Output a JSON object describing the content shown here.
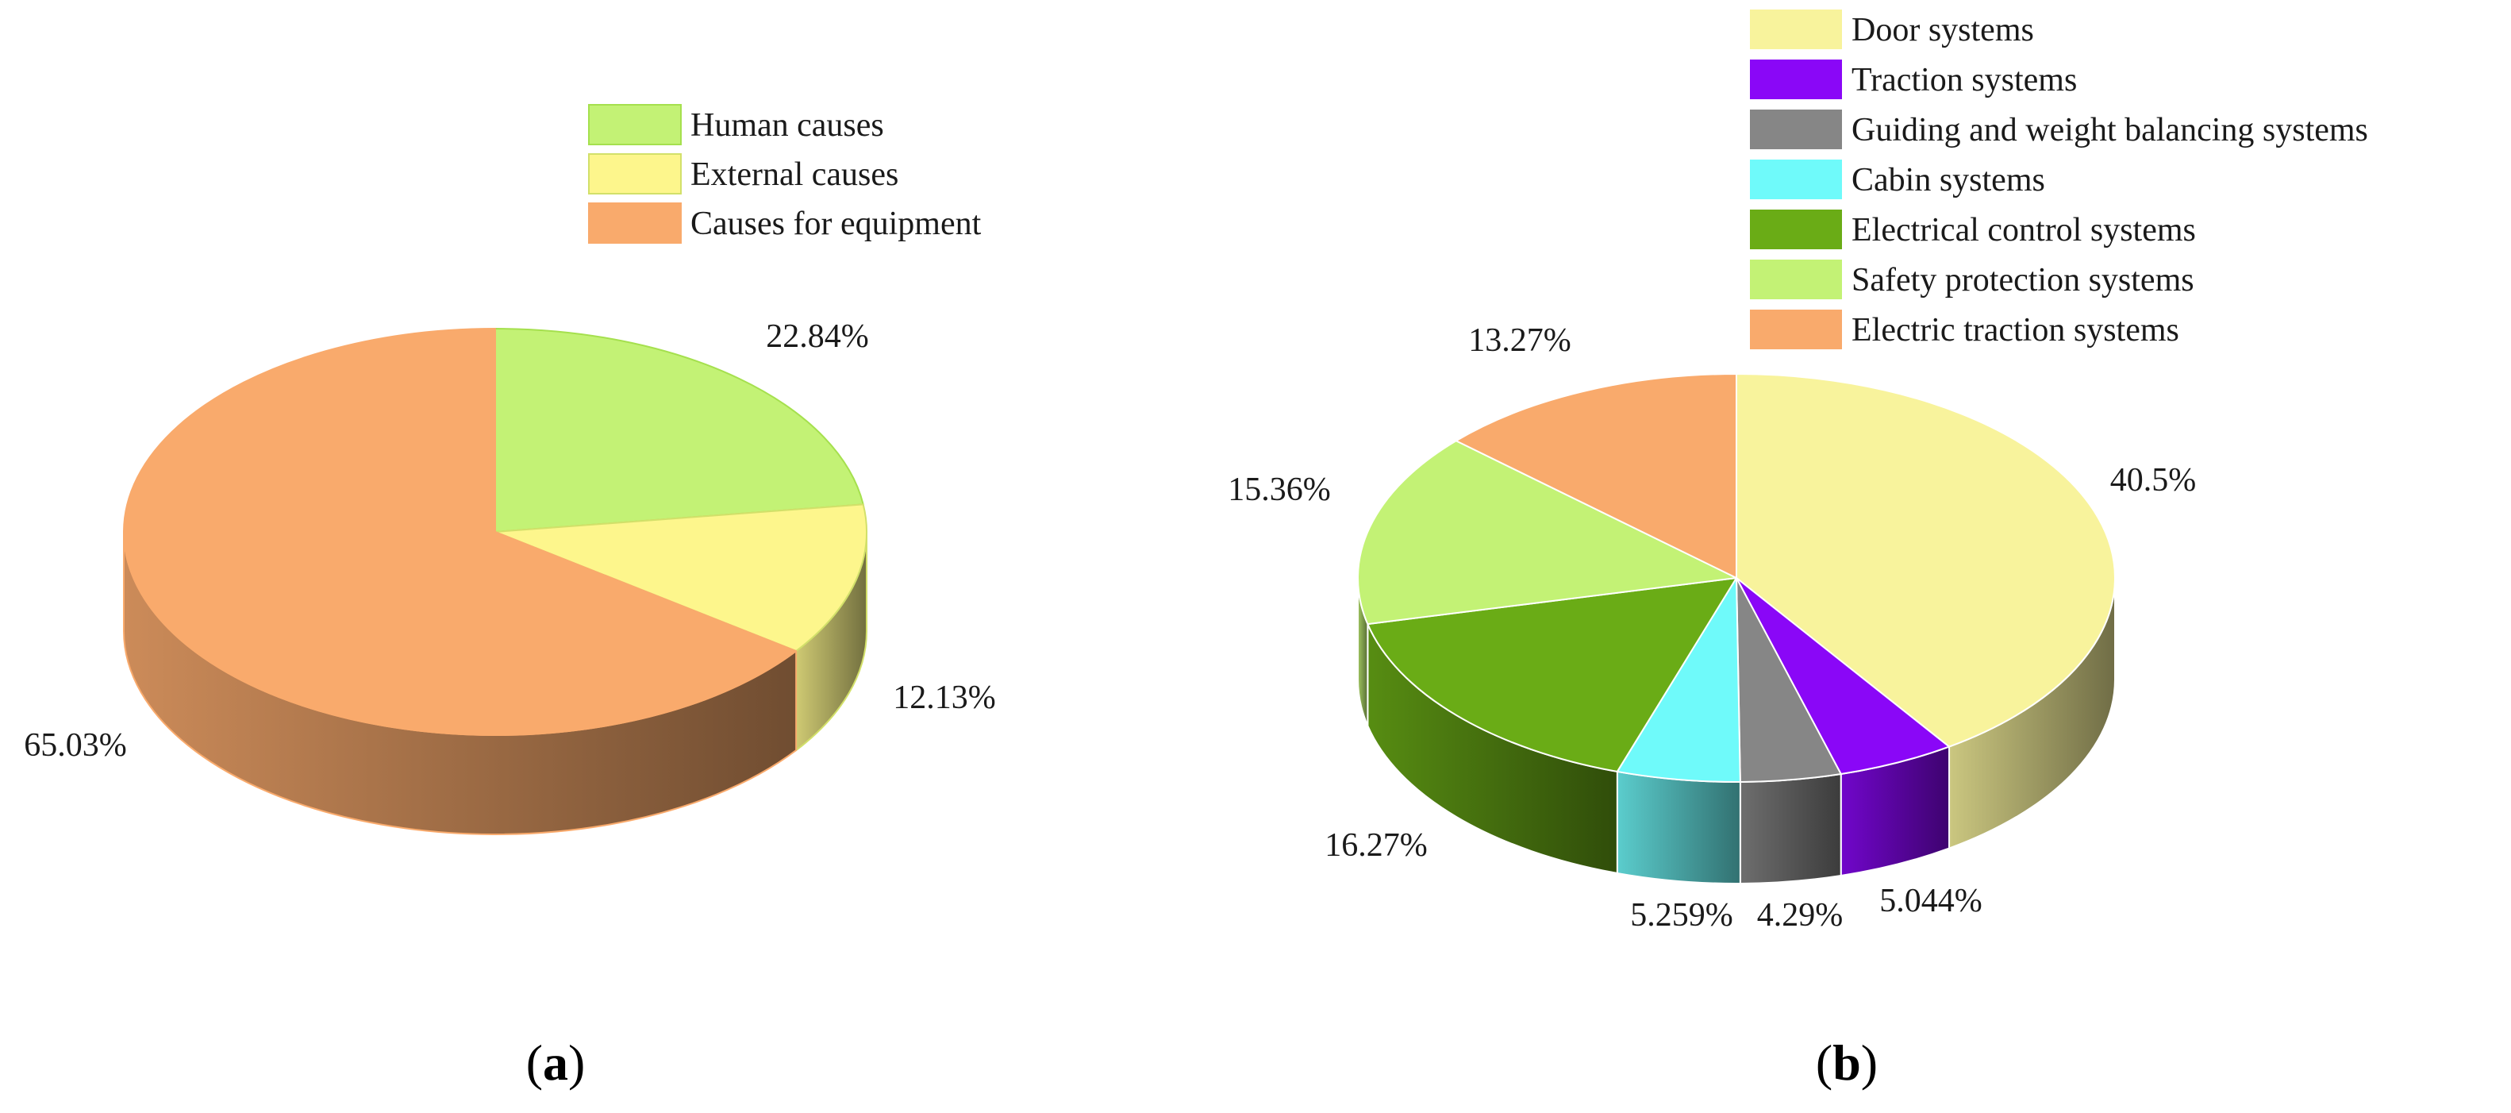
{
  "chart_data": [
    {
      "type": "pie",
      "style": "3d",
      "panel_label": "a",
      "legend_position": "top-right",
      "slices": [
        {
          "label": "Human causes",
          "value": 22.84,
          "value_label": "22.84%",
          "color": "#c3f275",
          "edge": "#a5e04e"
        },
        {
          "label": "External causes",
          "value": 12.13,
          "value_label": "12.13%",
          "color": "#fdf68c",
          "edge": "#d2e06a"
        },
        {
          "label": "Causes for equipment",
          "value": 65.03,
          "value_label": "65.03%",
          "color": "#f9aa6c",
          "edge": "#f9aa6c"
        }
      ]
    },
    {
      "type": "pie",
      "style": "3d",
      "panel_label": "b",
      "legend_position": "top-right",
      "slices": [
        {
          "label": "Door systems",
          "value": 40.5,
          "value_label": "40.5%",
          "color": "#f8f39c",
          "edge": "#ffffff"
        },
        {
          "label": "Traction systems",
          "value": 5.044,
          "value_label": "5.044%",
          "color": "#8a07f7",
          "edge": "#ffffff"
        },
        {
          "label": "Guiding and weight balancing systems",
          "value": 4.29,
          "value_label": "4.29%",
          "color": "#868686",
          "edge": "#ffffff"
        },
        {
          "label": "Cabin systems",
          "value": 5.259,
          "value_label": "5.259%",
          "color": "#6ffafa",
          "edge": "#ffffff"
        },
        {
          "label": "Electrical control systems",
          "value": 16.27,
          "value_label": "16.27%",
          "color": "#6aac16",
          "edge": "#ffffff"
        },
        {
          "label": "Safety protection systems",
          "value": 15.36,
          "value_label": "15.36%",
          "color": "#c3f275",
          "edge": "#ffffff"
        },
        {
          "label": "Electric traction systems",
          "value": 13.27,
          "value_label": "13.27%",
          "color": "#f9aa6c",
          "edge": "#ffffff"
        }
      ]
    }
  ]
}
